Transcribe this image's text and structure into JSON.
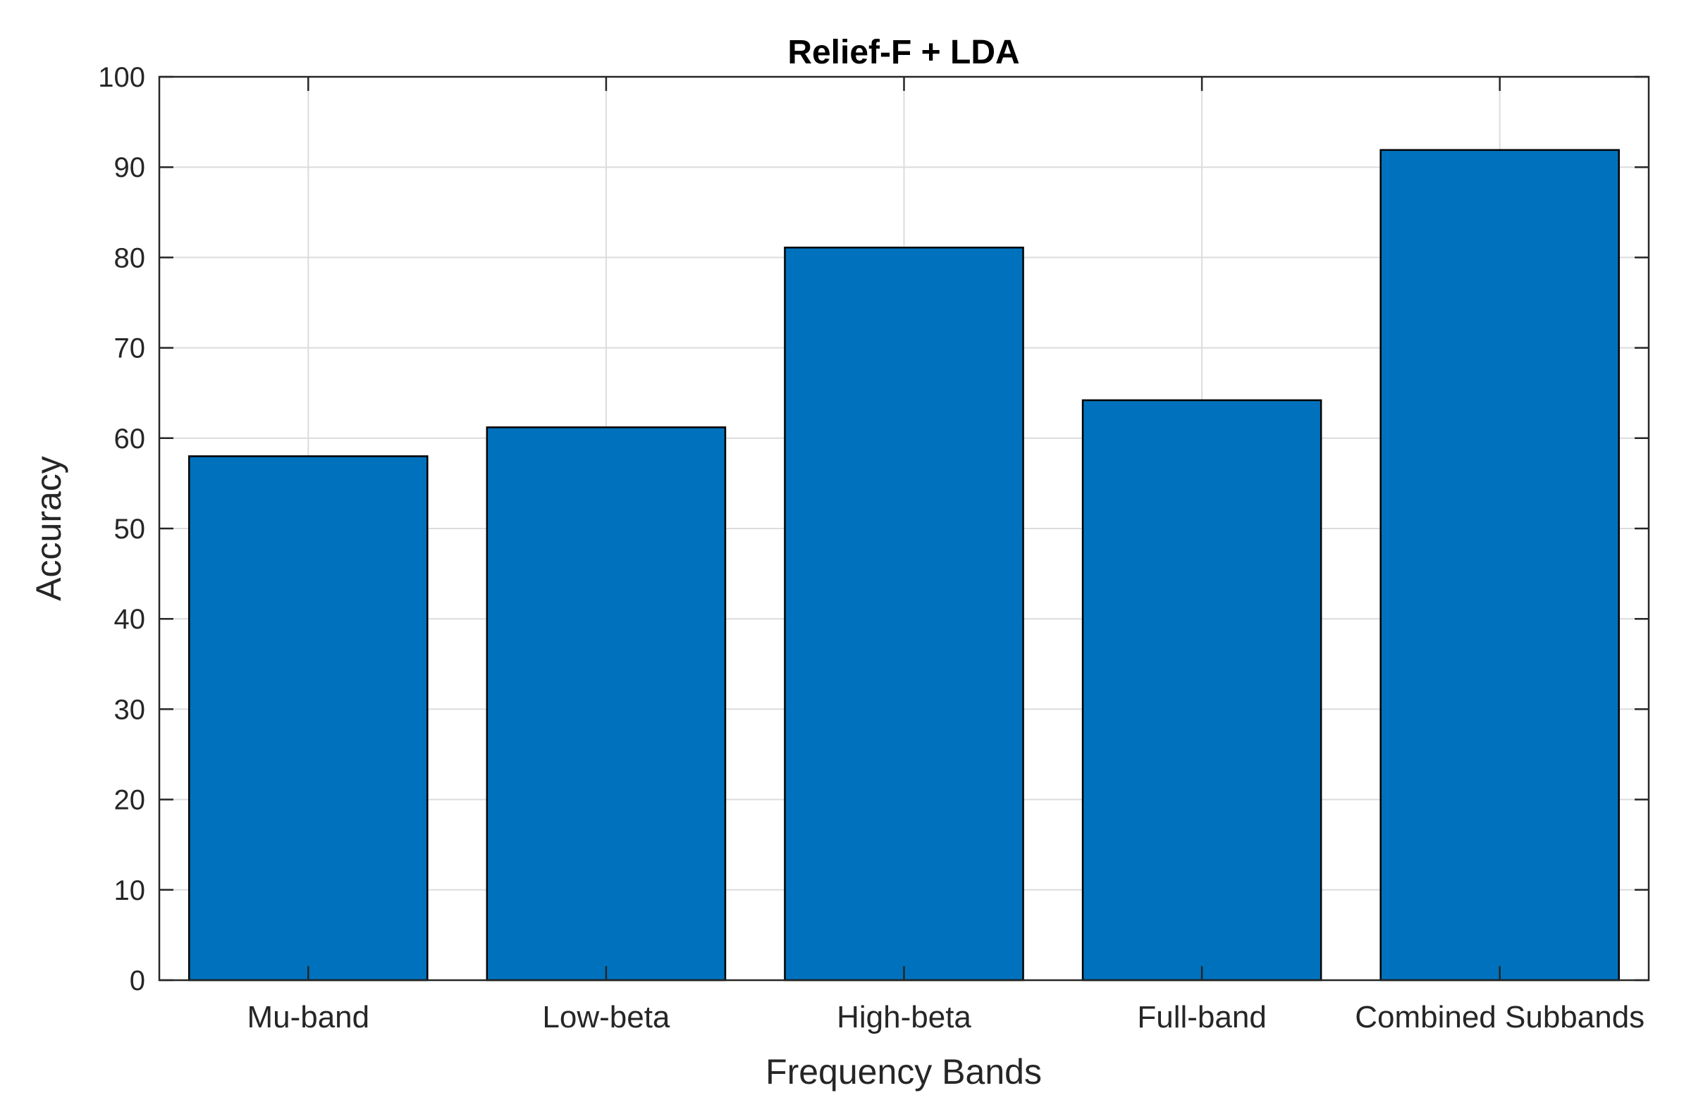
{
  "chart_data": {
    "type": "bar",
    "title": "Relief-F + LDA",
    "xlabel": "Frequency Bands",
    "ylabel": "Accuracy",
    "categories": [
      "Mu-band",
      "Low-beta",
      "High-beta",
      "Full-band",
      "Combined Subbands"
    ],
    "values": [
      58.0,
      61.2,
      81.1,
      64.2,
      91.9
    ],
    "ylim": [
      0,
      100
    ],
    "yticks": [
      0,
      10,
      20,
      30,
      40,
      50,
      60,
      70,
      80,
      90,
      100
    ],
    "grid": true,
    "bar_color": "#0072BD",
    "edge_color": "#000000"
  }
}
